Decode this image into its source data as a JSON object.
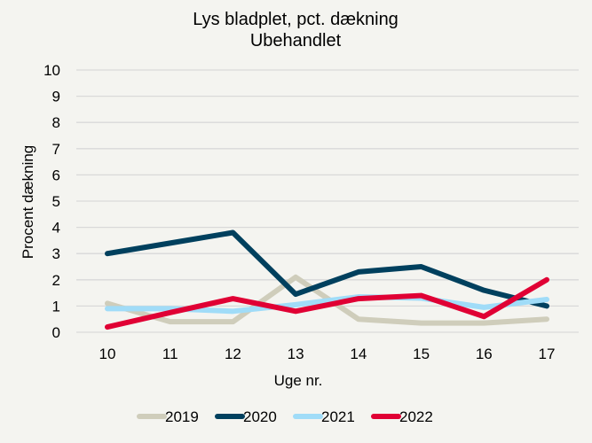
{
  "chart_data": {
    "type": "line",
    "title": "Lys bladplet, pct. dækning",
    "subtitle": "Ubehandlet",
    "xlabel": "Uge nr.",
    "ylabel": "Procent dækning",
    "x": [
      10,
      11,
      12,
      13,
      14,
      15,
      16,
      17
    ],
    "ylim": [
      0,
      10
    ],
    "yticks": [
      0,
      1,
      2,
      3,
      4,
      5,
      6,
      7,
      8,
      9,
      10
    ],
    "grid": true,
    "legend": "bottom",
    "series": [
      {
        "name": "2019",
        "color": "#cfcdbb",
        "values": [
          1.1,
          0.4,
          0.4,
          2.1,
          0.5,
          0.35,
          0.35,
          0.5
        ]
      },
      {
        "name": "2020",
        "color": "#00405e",
        "values": [
          3.0,
          3.4,
          3.8,
          1.45,
          2.3,
          2.5,
          1.6,
          1.0
        ]
      },
      {
        "name": "2021",
        "color": "#a0dcf8",
        "values": [
          0.9,
          0.9,
          0.8,
          1.05,
          1.35,
          1.3,
          0.95,
          1.25
        ]
      },
      {
        "name": "2022",
        "color": "#e00034",
        "values": [
          0.2,
          0.75,
          1.28,
          0.8,
          1.28,
          1.4,
          0.6,
          2.0
        ]
      }
    ]
  }
}
